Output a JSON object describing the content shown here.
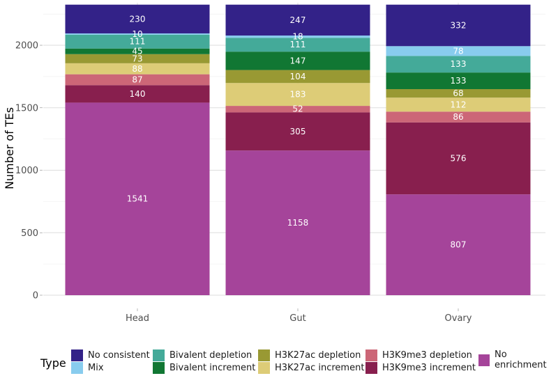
{
  "chart_data": {
    "type": "bar",
    "stacked": true,
    "title": "",
    "xlabel": "",
    "ylabel": "Number of TEs",
    "ylim": [
      0,
      2340
    ],
    "yticks": [
      0,
      500,
      1000,
      1500,
      2000
    ],
    "grid": true,
    "categories": [
      "Head",
      "Gut",
      "Ovary"
    ],
    "legend_title": "Type",
    "legend_position": "bottom",
    "series": [
      {
        "name": "No enrichment",
        "color": "#A5449A",
        "values": [
          1541,
          1158,
          807
        ]
      },
      {
        "name": "H3K9me3 increment",
        "color": "#881F4E",
        "values": [
          140,
          305,
          576
        ]
      },
      {
        "name": "H3K9me3 depletion",
        "color": "#CC6677",
        "values": [
          87,
          52,
          86
        ]
      },
      {
        "name": "H3K27ac increment",
        "color": "#DDCC77",
        "values": [
          88,
          183,
          112
        ]
      },
      {
        "name": "H3K27ac depletion",
        "color": "#999933",
        "values": [
          73,
          104,
          68
        ]
      },
      {
        "name": "Bivalent increment",
        "color": "#117733",
        "values": [
          45,
          147,
          133
        ]
      },
      {
        "name": "Bivalent depletion",
        "color": "#44AA99",
        "values": [
          111,
          111,
          133
        ]
      },
      {
        "name": "Mix",
        "color": "#88CCEE",
        "values": [
          10,
          18,
          78
        ]
      },
      {
        "name": "No consistent",
        "color": "#332288",
        "values": [
          230,
          247,
          332
        ]
      }
    ],
    "legend_order": [
      "No consistent",
      "Mix",
      "Bivalent depletion",
      "Bivalent increment",
      "H3K27ac depletion",
      "H3K27ac increment",
      "H3K9me3 depletion",
      "H3K9me3 increment",
      "No enrichment"
    ]
  }
}
